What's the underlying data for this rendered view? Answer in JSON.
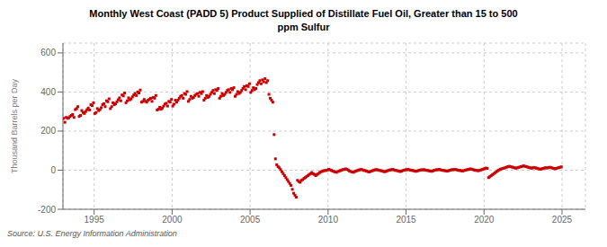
{
  "chart_data": {
    "type": "scatter",
    "title": "Monthly West Coast (PADD 5) Product Supplied of Distillate Fuel Oil, Greater than 15 to 500\nppm Sulfur",
    "ylabel": "Thousand Barrels per Day",
    "annotation": "Source: U.S. Energy Information Administration",
    "color": "#cc0000",
    "marker": "square",
    "grid": true,
    "xlim": [
      1993.0,
      2026.5
    ],
    "xticks": [
      1995,
      2000,
      2005,
      2010,
      2015,
      2020,
      2025
    ],
    "ylim": [
      -200,
      650
    ],
    "yticks": [
      -200,
      0,
      200,
      400,
      600
    ],
    "x": [
      1993.0416666666667,
      1993.125,
      1993.2083333333333,
      1993.2916666666667,
      1993.375,
      1993.4583333333333,
      1993.5416666666667,
      1993.625,
      1993.7083333333333,
      1993.7916666666667,
      1993.875,
      1993.9583333333333,
      1994.0416666666667,
      1994.125,
      1994.2083333333333,
      1994.2916666666667,
      1994.375,
      1994.4583333333333,
      1994.5416666666667,
      1994.625,
      1994.7083333333333,
      1994.7916666666667,
      1994.875,
      1994.9583333333333,
      1995.0416666666667,
      1995.125,
      1995.2083333333333,
      1995.2916666666667,
      1995.375,
      1995.4583333333333,
      1995.5416666666667,
      1995.625,
      1995.7083333333333,
      1995.7916666666667,
      1995.875,
      1995.9583333333333,
      1996.0416666666667,
      1996.125,
      1996.2083333333333,
      1996.2916666666667,
      1996.375,
      1996.4583333333333,
      1996.5416666666667,
      1996.625,
      1996.7083333333333,
      1996.7916666666667,
      1996.875,
      1996.9583333333333,
      1997.0416666666667,
      1997.125,
      1997.2083333333333,
      1997.2916666666667,
      1997.375,
      1997.4583333333333,
      1997.5416666666667,
      1997.625,
      1997.7083333333333,
      1997.7916666666667,
      1997.875,
      1997.9583333333333,
      1998.0416666666667,
      1998.125,
      1998.2083333333333,
      1998.2916666666667,
      1998.375,
      1998.4583333333333,
      1998.5416666666667,
      1998.625,
      1998.7083333333333,
      1998.7916666666667,
      1998.875,
      1998.9583333333333,
      1999.0416666666667,
      1999.125,
      1999.2083333333333,
      1999.2916666666667,
      1999.375,
      1999.4583333333333,
      1999.5416666666667,
      1999.625,
      1999.7083333333333,
      1999.7916666666667,
      1999.875,
      1999.9583333333333,
      2000.0416666666667,
      2000.125,
      2000.2083333333333,
      2000.2916666666667,
      2000.375,
      2000.4583333333333,
      2000.5416666666667,
      2000.625,
      2000.7083333333333,
      2000.7916666666667,
      2000.875,
      2000.9583333333333,
      2001.0416666666667,
      2001.125,
      2001.2083333333333,
      2001.2916666666667,
      2001.375,
      2001.4583333333333,
      2001.5416666666667,
      2001.625,
      2001.7083333333333,
      2001.7916666666667,
      2001.875,
      2001.9583333333333,
      2002.0416666666667,
      2002.125,
      2002.2083333333333,
      2002.2916666666667,
      2002.375,
      2002.4583333333333,
      2002.5416666666667,
      2002.625,
      2002.7083333333333,
      2002.7916666666667,
      2002.875,
      2002.9583333333333,
      2003.0416666666667,
      2003.125,
      2003.2083333333333,
      2003.2916666666667,
      2003.375,
      2003.4583333333333,
      2003.5416666666667,
      2003.625,
      2003.7083333333333,
      2003.7916666666667,
      2003.875,
      2003.9583333333333,
      2004.0416666666667,
      2004.125,
      2004.2083333333333,
      2004.2916666666667,
      2004.375,
      2004.4583333333333,
      2004.5416666666667,
      2004.625,
      2004.7083333333333,
      2004.7916666666667,
      2004.875,
      2004.9583333333333,
      2005.0416666666667,
      2005.125,
      2005.2083333333333,
      2005.2916666666667,
      2005.375,
      2005.4583333333333,
      2005.5416666666667,
      2005.625,
      2005.7083333333333,
      2005.7916666666667,
      2005.875,
      2005.9583333333333,
      2006.0416666666667,
      2006.125,
      2006.2083333333333,
      2006.2916666666667,
      2006.375,
      2006.4583333333333,
      2006.5416666666667,
      2006.625,
      2006.7083333333333,
      2006.7916666666667,
      2006.875,
      2006.9583333333333,
      2007.0416666666667,
      2007.125,
      2007.2083333333333,
      2007.2916666666667,
      2007.375,
      2007.4583333333333,
      2007.5416666666667,
      2007.625,
      2007.7083333333333,
      2007.7916666666667,
      2007.875,
      2007.9583333333333,
      2008.0416666666667,
      2008.125,
      2008.2083333333333,
      2008.2916666666667,
      2008.375,
      2008.4583333333333,
      2008.5416666666667,
      2008.625,
      2008.7083333333333,
      2008.7916666666667,
      2008.875,
      2008.9583333333333,
      2009.0416666666667,
      2009.125,
      2009.2083333333333,
      2009.2916666666667,
      2009.375,
      2009.4583333333333,
      2009.5416666666667,
      2009.625,
      2009.7083333333333,
      2009.7916666666667,
      2009.875,
      2009.9583333333333,
      2010.0416666666667,
      2010.125,
      2010.2083333333333,
      2010.2916666666667,
      2010.375,
      2010.4583333333333,
      2010.5416666666667,
      2010.625,
      2010.7083333333333,
      2010.7916666666667,
      2010.875,
      2010.9583333333333,
      2011.0416666666667,
      2011.125,
      2011.2083333333333,
      2011.2916666666667,
      2011.375,
      2011.4583333333333,
      2011.5416666666667,
      2011.625,
      2011.7083333333333,
      2011.7916666666667,
      2011.875,
      2011.9583333333333,
      2012.0416666666667,
      2012.125,
      2012.2083333333333,
      2012.2916666666667,
      2012.375,
      2012.4583333333333,
      2012.5416666666667,
      2012.625,
      2012.7083333333333,
      2012.7916666666667,
      2012.875,
      2012.9583333333333,
      2013.0416666666667,
      2013.125,
      2013.2083333333333,
      2013.2916666666667,
      2013.375,
      2013.4583333333333,
      2013.5416666666667,
      2013.625,
      2013.7083333333333,
      2013.7916666666667,
      2013.875,
      2013.9583333333333,
      2014.0416666666667,
      2014.125,
      2014.2083333333333,
      2014.2916666666667,
      2014.375,
      2014.4583333333333,
      2014.5416666666667,
      2014.625,
      2014.7083333333333,
      2014.7916666666667,
      2014.875,
      2014.9583333333333,
      2015.0416666666667,
      2015.125,
      2015.2083333333333,
      2015.2916666666667,
      2015.375,
      2015.4583333333333,
      2015.5416666666667,
      2015.625,
      2015.7083333333333,
      2015.7916666666667,
      2015.875,
      2015.9583333333333,
      2016.0416666666667,
      2016.125,
      2016.2083333333333,
      2016.2916666666667,
      2016.375,
      2016.4583333333333,
      2016.5416666666667,
      2016.625,
      2016.7083333333333,
      2016.7916666666667,
      2016.875,
      2016.9583333333333,
      2017.0416666666667,
      2017.125,
      2017.2083333333333,
      2017.2916666666667,
      2017.375,
      2017.4583333333333,
      2017.5416666666667,
      2017.625,
      2017.7083333333333,
      2017.7916666666667,
      2017.875,
      2017.9583333333333,
      2018.0416666666667,
      2018.125,
      2018.2083333333333,
      2018.2916666666667,
      2018.375,
      2018.4583333333333,
      2018.5416666666667,
      2018.625,
      2018.7083333333333,
      2018.7916666666667,
      2018.875,
      2018.9583333333333,
      2019.0416666666667,
      2019.125,
      2019.2083333333333,
      2019.2916666666667,
      2019.375,
      2019.4583333333333,
      2019.5416666666667,
      2019.625,
      2019.7083333333333,
      2019.7916666666667,
      2019.875,
      2019.9583333333333,
      2020.0416666666667,
      2020.125,
      2020.2083333333333,
      2020.2916666666667,
      2020.375,
      2020.4583333333333,
      2020.5416666666667,
      2020.625,
      2020.7083333333333,
      2020.7916666666667,
      2020.875,
      2020.9583333333333,
      2021.0416666666667,
      2021.125,
      2021.2083333333333,
      2021.2916666666667,
      2021.375,
      2021.4583333333333,
      2021.5416666666667,
      2021.625,
      2021.7083333333333,
      2021.7916666666667,
      2021.875,
      2021.9583333333333,
      2022.0416666666667,
      2022.125,
      2022.2083333333333,
      2022.2916666666667,
      2022.375,
      2022.4583333333333,
      2022.5416666666667,
      2022.625,
      2022.7083333333333,
      2022.7916666666667,
      2022.875,
      2022.9583333333333,
      2023.0416666666667,
      2023.125,
      2023.2083333333333,
      2023.2916666666667,
      2023.375,
      2023.4583333333333,
      2023.5416666666667,
      2023.625,
      2023.7083333333333,
      2023.7916666666667,
      2023.875,
      2023.9583333333333,
      2024.0416666666667,
      2024.125,
      2024.2083333333333,
      2024.2916666666667,
      2024.375,
      2024.4583333333333,
      2024.5416666666667,
      2024.625,
      2024.7083333333333,
      2024.7916666666667,
      2024.875,
      2024.9583333333333
    ],
    "values": [
      265,
      245,
      270,
      265,
      268,
      275,
      280,
      285,
      270,
      310,
      315,
      325,
      275,
      280,
      305,
      295,
      290,
      300,
      310,
      318,
      308,
      335,
      330,
      345,
      290,
      295,
      315,
      305,
      310,
      320,
      335,
      340,
      325,
      355,
      350,
      365,
      315,
      325,
      345,
      335,
      340,
      350,
      360,
      370,
      355,
      385,
      380,
      395,
      345,
      355,
      370,
      360,
      365,
      375,
      385,
      392,
      382,
      400,
      395,
      410,
      348,
      352,
      362,
      352,
      348,
      358,
      362,
      368,
      352,
      372,
      368,
      382,
      308,
      312,
      322,
      312,
      318,
      328,
      338,
      342,
      328,
      352,
      348,
      362,
      328,
      338,
      358,
      348,
      358,
      368,
      378,
      382,
      368,
      392,
      388,
      402,
      352,
      362,
      378,
      368,
      372,
      382,
      388,
      392,
      378,
      398,
      392,
      402,
      358,
      368,
      382,
      372,
      378,
      388,
      398,
      408,
      392,
      412,
      408,
      418,
      368,
      378,
      392,
      382,
      388,
      398,
      408,
      412,
      398,
      418,
      412,
      422,
      378,
      388,
      402,
      392,
      398,
      408,
      418,
      428,
      412,
      432,
      428,
      442,
      398,
      408,
      422,
      412,
      418,
      438,
      448,
      458,
      442,
      462,
      452,
      468,
      448,
      458,
      388,
      368,
      358,
      348,
      182,
      58,
      28,
      18,
      12,
      3,
      -8,
      -18,
      -28,
      -38,
      -48,
      -58,
      -68,
      -78,
      -98,
      -118,
      -128,
      -138,
      -52,
      -58,
      -62,
      -52,
      -48,
      -42,
      -38,
      -32,
      -28,
      -22,
      -18,
      -12,
      -18,
      -22,
      -28,
      -22,
      -18,
      -12,
      -8,
      -6,
      -3,
      -2,
      -1,
      1,
      4,
      2,
      -1,
      -4,
      -7,
      -9,
      -11,
      -7,
      -4,
      -2,
      1,
      3,
      4,
      7,
      4,
      1,
      -4,
      -7,
      -9,
      -11,
      -7,
      -4,
      -2,
      1,
      2,
      4,
      2,
      -1,
      -2,
      -4,
      -7,
      -9,
      -7,
      -4,
      -2,
      1,
      2,
      3,
      1,
      -1,
      -2,
      -4,
      -6,
      -8,
      -6,
      -3,
      -1,
      1,
      2,
      4,
      2,
      -1,
      -1,
      -3,
      -5,
      -7,
      -5,
      -2,
      0,
      2,
      2,
      4,
      2,
      0,
      -1,
      -2,
      -4,
      -6,
      -4,
      -2,
      0,
      2,
      1,
      3,
      1,
      -1,
      -1,
      -3,
      -4,
      -6,
      -4,
      -1,
      1,
      2,
      2,
      4,
      2,
      0,
      -1,
      -2,
      -3,
      -5,
      -3,
      -1,
      1,
      3,
      2,
      4,
      3,
      1,
      -1,
      -1,
      -3,
      -4,
      -2,
      0,
      2,
      3,
      4,
      7,
      5,
      3,
      1,
      -1,
      -1,
      -3,
      -1,
      1,
      3,
      5,
      9,
      11,
      9,
      -38,
      -33,
      -28,
      -23,
      -18,
      -13,
      -8,
      -3,
      1,
      4,
      7,
      9,
      11,
      13,
      16,
      18,
      20,
      18,
      16,
      14,
      12,
      10,
      12,
      14,
      16,
      18,
      20,
      22,
      20,
      18,
      16,
      14,
      12,
      10,
      12,
      14,
      12,
      10,
      8,
      6,
      5,
      7,
      9,
      11,
      13,
      11,
      13,
      15,
      13,
      11,
      9,
      7,
      9,
      11,
      13,
      15,
      17
    ]
  }
}
